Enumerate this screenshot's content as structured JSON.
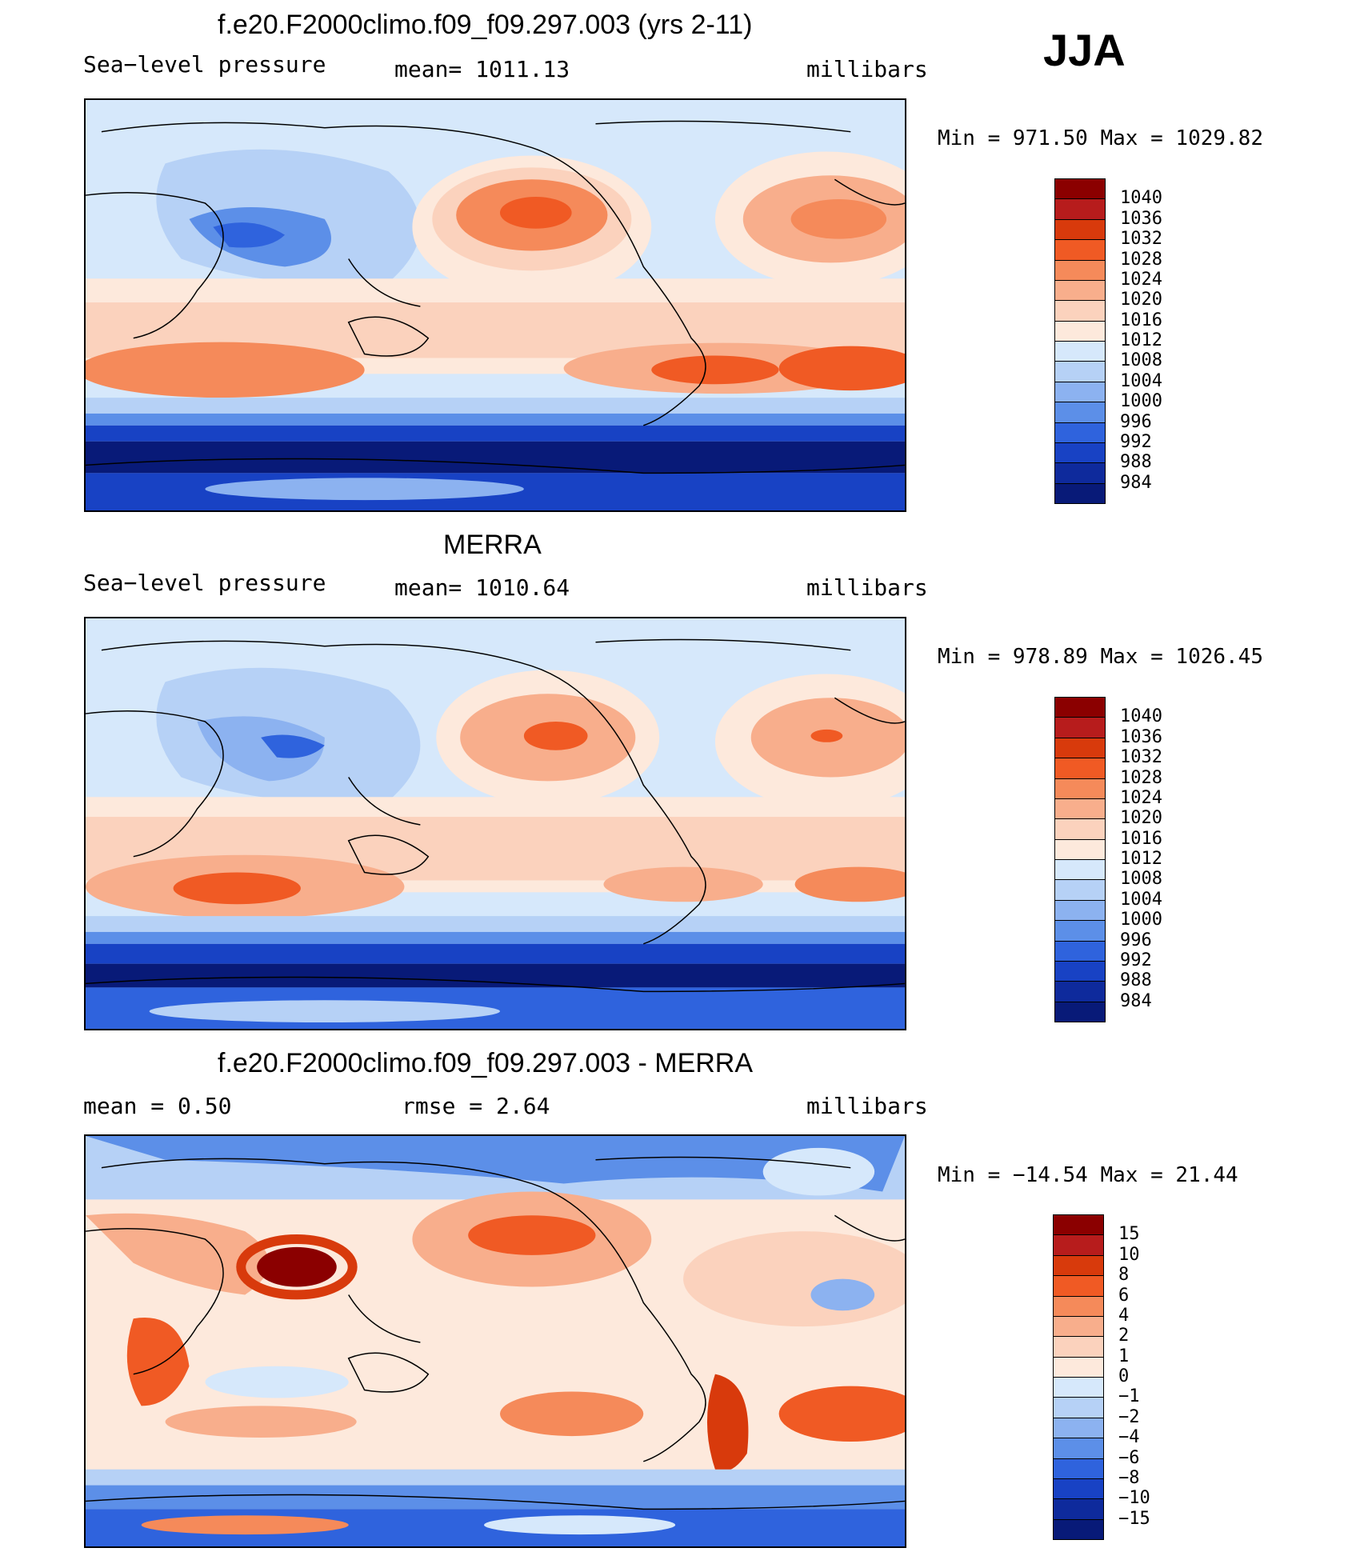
{
  "season": "JJA",
  "panels": [
    {
      "title": "f.e20.F2000climo.f09_f09.297.003 (yrs 2-11)",
      "left": "Sea−level pressure",
      "center": "mean=  1011.13",
      "right": "millibars",
      "minmax": "Min  =  971.50  Max  =  1029.82",
      "levels": [
        "1040",
        "1036",
        "1032",
        "1028",
        "1024",
        "1020",
        "1016",
        "1012",
        "1008",
        "1004",
        "1000",
        "996",
        "992",
        "988",
        "984"
      ],
      "colors": [
        "#8b0000",
        "#b71c1c",
        "#d83a0c",
        "#f05a24",
        "#f58a5a",
        "#f8ae8c",
        "#fbd2bd",
        "#fde9dc",
        "#d6e8fb",
        "#b6d1f6",
        "#8cb2f0",
        "#5c8fe8",
        "#2f63dd",
        "#1842c4",
        "#0e2a9c",
        "#081a78"
      ]
    },
    {
      "title": "MERRA",
      "left": "Sea−level pressure",
      "center": "mean=  1010.64",
      "right": "millibars",
      "minmax": "Min  =  978.89  Max  =  1026.45",
      "levels": [
        "1040",
        "1036",
        "1032",
        "1028",
        "1024",
        "1020",
        "1016",
        "1012",
        "1008",
        "1004",
        "1000",
        "996",
        "992",
        "988",
        "984"
      ],
      "colors": [
        "#8b0000",
        "#b71c1c",
        "#d83a0c",
        "#f05a24",
        "#f58a5a",
        "#f8ae8c",
        "#fbd2bd",
        "#fde9dc",
        "#d6e8fb",
        "#b6d1f6",
        "#8cb2f0",
        "#5c8fe8",
        "#2f63dd",
        "#1842c4",
        "#0e2a9c",
        "#081a78"
      ]
    },
    {
      "title": "f.e20.F2000climo.f09_f09.297.003 - MERRA",
      "left": "mean  =     0.50",
      "center": "rmse  =     2.64",
      "right": "millibars",
      "minmax": "Min  =  −14.54  Max  =    21.44",
      "levels": [
        "15",
        "10",
        "8",
        "6",
        "4",
        "2",
        "1",
        "0",
        "−1",
        "−2",
        "−4",
        "−6",
        "−8",
        "−10",
        "−15"
      ],
      "colors": [
        "#8b0000",
        "#b71c1c",
        "#d83a0c",
        "#f05a24",
        "#f58a5a",
        "#f8ae8c",
        "#fbd2bd",
        "#fde9dc",
        "#d6e8fb",
        "#b6d1f6",
        "#8cb2f0",
        "#5c8fe8",
        "#2f63dd",
        "#1842c4",
        "#0e2a9c",
        "#081a78"
      ]
    }
  ]
}
